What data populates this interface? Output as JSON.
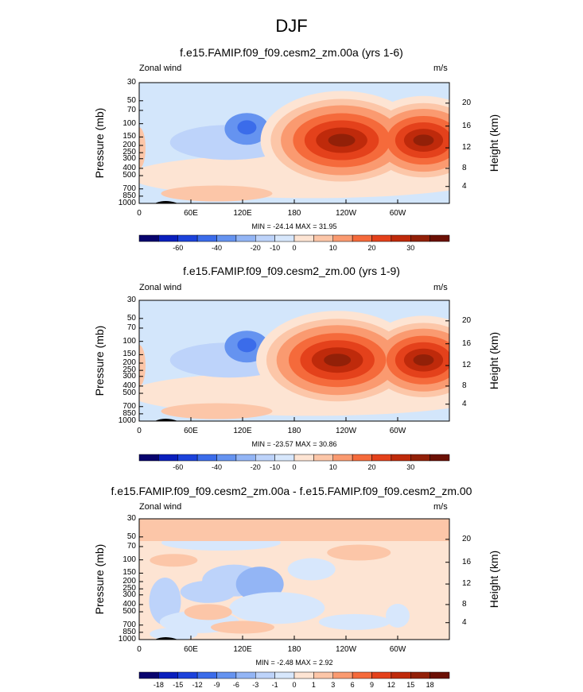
{
  "figure": {
    "title": "DJF"
  },
  "colors": {
    "panel_bg": "#d3e6fb",
    "frame": "#000000",
    "abs_scale": [
      "#08046e",
      "#0a1fbd",
      "#1c42db",
      "#3b6cea",
      "#6593f0",
      "#93b5f5",
      "#bdd3fa",
      "#d7e7fc",
      "#fde4d3",
      "#fcc6a8",
      "#fa9a70",
      "#f56a3b",
      "#e4411b",
      "#bf2a0b",
      "#922008",
      "#6b1005"
    ],
    "diff_scale": [
      "#08046e",
      "#0a1fbd",
      "#1c42db",
      "#3b6cea",
      "#6593f0",
      "#93b5f5",
      "#bdd3fa",
      "#d7e7fc",
      "#fde4d3",
      "#fcc6a8",
      "#fa9a70",
      "#f56a3b",
      "#e4411b",
      "#bf2a0b",
      "#922008",
      "#6b1005"
    ]
  },
  "chart_data": [
    {
      "type": "contour",
      "title": "f.e15.FAMIP.f09_f09.cesm2_zm.00a (yrs 1-6)",
      "left_label": "Zonal wind",
      "right_label": "m/s",
      "ylabel": "Pressure (mb)",
      "ylabel_right": "Height (km)",
      "x_ticks": [
        "0",
        "60E",
        "120E",
        "180",
        "120W",
        "60W"
      ],
      "y_ticks": [
        "30",
        "50",
        "70",
        "100",
        "150",
        "200",
        "250",
        "300",
        "400",
        "500",
        "700",
        "850",
        "1000"
      ],
      "y_ticks_right": [
        "20",
        "16",
        "12",
        "8",
        "4"
      ],
      "min_max": "MIN = -24.14   MAX = 31.95",
      "colorbar_ticks": [
        "-60",
        "-40",
        "-20",
        "-10",
        "0",
        "10",
        "20",
        "30"
      ],
      "min": -24.14,
      "max": 31.95,
      "features": [
        {
          "kind": "jet",
          "lon": 235,
          "pressure": 160,
          "value": 31.9
        },
        {
          "kind": "jet",
          "lon": 330,
          "pressure": 160,
          "value": 30.5
        },
        {
          "kind": "easterly",
          "lon": 125,
          "pressure": 110,
          "value": -24.1
        }
      ]
    },
    {
      "type": "contour",
      "title": "f.e15.FAMIP.f09_f09.cesm2_zm.00 (yrs 1-9)",
      "left_label": "Zonal wind",
      "right_label": "m/s",
      "ylabel": "Pressure (mb)",
      "ylabel_right": "Height (km)",
      "x_ticks": [
        "0",
        "60E",
        "120E",
        "180",
        "120W",
        "60W"
      ],
      "y_ticks": [
        "30",
        "50",
        "70",
        "100",
        "150",
        "200",
        "250",
        "300",
        "400",
        "500",
        "700",
        "850",
        "1000"
      ],
      "y_ticks_right": [
        "20",
        "16",
        "12",
        "8",
        "4"
      ],
      "min_max": "MIN = -23.57   MAX = 30.86",
      "colorbar_ticks": [
        "-60",
        "-40",
        "-20",
        "-10",
        "0",
        "10",
        "20",
        "30"
      ],
      "min": -23.57,
      "max": 30.86,
      "features": [
        {
          "kind": "jet",
          "lon": 230,
          "pressure": 170,
          "value": 30.8
        },
        {
          "kind": "jet",
          "lon": 330,
          "pressure": 170,
          "value": 29.5
        },
        {
          "kind": "easterly",
          "lon": 125,
          "pressure": 110,
          "value": -23.5
        }
      ]
    },
    {
      "type": "contour",
      "title": "f.e15.FAMIP.f09_f09.cesm2_zm.00a - f.e15.FAMIP.f09_f09.cesm2_zm.00",
      "left_label": "Zonal wind",
      "right_label": "m/s",
      "ylabel": "Pressure (mb)",
      "ylabel_right": "Height (km)",
      "x_ticks": [
        "0",
        "60E",
        "120E",
        "180",
        "120W",
        "60W"
      ],
      "y_ticks": [
        "30",
        "50",
        "70",
        "100",
        "150",
        "200",
        "250",
        "300",
        "400",
        "500",
        "700",
        "850",
        "1000"
      ],
      "y_ticks_right": [
        "20",
        "16",
        "12",
        "8",
        "4"
      ],
      "min_max": "MIN = -2.48   MAX = 2.92",
      "colorbar_ticks": [
        "-18",
        "-15",
        "-12",
        "-9",
        "-6",
        "-3",
        "-1",
        "0",
        "1",
        "3",
        "6",
        "9",
        "12",
        "15",
        "18"
      ],
      "min": -2.48,
      "max": 2.92
    }
  ]
}
